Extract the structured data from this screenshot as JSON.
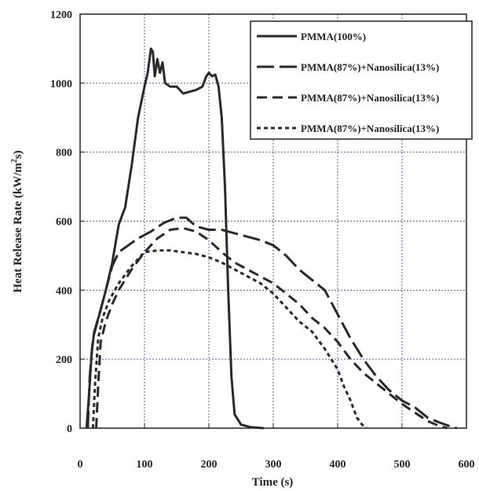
{
  "chart_data": {
    "type": "line",
    "xlabel": "Time (s)",
    "ylabel_main": "Heat Release Rate (kW/m",
    "ylabel_sup": "2",
    "ylabel_end": "s)",
    "xlim": [
      0,
      600
    ],
    "ylim": [
      0,
      1200
    ],
    "xticks": [
      0,
      100,
      200,
      300,
      400,
      500,
      600
    ],
    "yticks": [
      0,
      200,
      400,
      600,
      800,
      1000,
      1200
    ],
    "grid": true,
    "legend_position": "top-right",
    "colors": {
      "line": "#2a2a2a",
      "grid": "#4a5fd0",
      "axis": "#222222"
    },
    "series": [
      {
        "name": "PMMA(100%)",
        "dash": "solid",
        "points": [
          [
            10,
            0
          ],
          [
            14,
            100
          ],
          [
            18,
            220
          ],
          [
            22,
            280
          ],
          [
            30,
            330
          ],
          [
            40,
            400
          ],
          [
            50,
            480
          ],
          [
            60,
            590
          ],
          [
            70,
            640
          ],
          [
            80,
            760
          ],
          [
            90,
            900
          ],
          [
            100,
            990
          ],
          [
            105,
            1030
          ],
          [
            110,
            1100
          ],
          [
            113,
            1090
          ],
          [
            116,
            1020
          ],
          [
            120,
            1070
          ],
          [
            124,
            1030
          ],
          [
            128,
            1060
          ],
          [
            132,
            1000
          ],
          [
            140,
            990
          ],
          [
            150,
            990
          ],
          [
            160,
            970
          ],
          [
            170,
            975
          ],
          [
            180,
            980
          ],
          [
            190,
            990
          ],
          [
            196,
            1020
          ],
          [
            200,
            1030
          ],
          [
            205,
            1020
          ],
          [
            210,
            1025
          ],
          [
            215,
            990
          ],
          [
            220,
            900
          ],
          [
            225,
            700
          ],
          [
            230,
            400
          ],
          [
            235,
            150
          ],
          [
            240,
            40
          ],
          [
            250,
            10
          ],
          [
            265,
            3
          ],
          [
            285,
            0
          ]
        ]
      },
      {
        "name": "PMMA(87%)+Nanosilica(13%)",
        "dash": "long-dash",
        "points": [
          [
            12,
            0
          ],
          [
            15,
            150
          ],
          [
            20,
            260
          ],
          [
            30,
            330
          ],
          [
            40,
            400
          ],
          [
            50,
            470
          ],
          [
            60,
            510
          ],
          [
            75,
            530
          ],
          [
            90,
            550
          ],
          [
            110,
            570
          ],
          [
            130,
            595
          ],
          [
            150,
            610
          ],
          [
            165,
            610
          ],
          [
            180,
            585
          ],
          [
            200,
            575
          ],
          [
            220,
            575
          ],
          [
            240,
            565
          ],
          [
            260,
            555
          ],
          [
            280,
            545
          ],
          [
            300,
            530
          ],
          [
            320,
            500
          ],
          [
            340,
            460
          ],
          [
            360,
            430
          ],
          [
            380,
            400
          ],
          [
            400,
            330
          ],
          [
            420,
            260
          ],
          [
            440,
            200
          ],
          [
            460,
            150
          ],
          [
            480,
            110
          ],
          [
            500,
            80
          ],
          [
            520,
            60
          ],
          [
            540,
            30
          ],
          [
            560,
            15
          ],
          [
            575,
            5
          ],
          [
            585,
            0
          ]
        ]
      },
      {
        "name": "PMMA(87%)+Nanosilica(13%)",
        "dash": "dash",
        "points": [
          [
            25,
            0
          ],
          [
            28,
            120
          ],
          [
            32,
            250
          ],
          [
            40,
            310
          ],
          [
            50,
            360
          ],
          [
            60,
            400
          ],
          [
            80,
            460
          ],
          [
            100,
            510
          ],
          [
            120,
            550
          ],
          [
            140,
            575
          ],
          [
            160,
            580
          ],
          [
            180,
            570
          ],
          [
            200,
            545
          ],
          [
            220,
            510
          ],
          [
            240,
            480
          ],
          [
            260,
            460
          ],
          [
            280,
            440
          ],
          [
            300,
            420
          ],
          [
            320,
            390
          ],
          [
            340,
            360
          ],
          [
            360,
            320
          ],
          [
            380,
            290
          ],
          [
            400,
            250
          ],
          [
            420,
            200
          ],
          [
            440,
            160
          ],
          [
            460,
            130
          ],
          [
            480,
            100
          ],
          [
            500,
            70
          ],
          [
            520,
            45
          ],
          [
            540,
            20
          ],
          [
            560,
            5
          ],
          [
            570,
            0
          ]
        ]
      },
      {
        "name": "PMMA(87%)+Nanosilica(13%)",
        "dash": "short-dash",
        "points": [
          [
            20,
            0
          ],
          [
            23,
            120
          ],
          [
            28,
            260
          ],
          [
            35,
            320
          ],
          [
            45,
            370
          ],
          [
            60,
            420
          ],
          [
            80,
            470
          ],
          [
            100,
            510
          ],
          [
            120,
            515
          ],
          [
            140,
            515
          ],
          [
            160,
            510
          ],
          [
            180,
            505
          ],
          [
            200,
            495
          ],
          [
            220,
            480
          ],
          [
            240,
            460
          ],
          [
            260,
            440
          ],
          [
            280,
            420
          ],
          [
            300,
            390
          ],
          [
            320,
            350
          ],
          [
            340,
            310
          ],
          [
            360,
            280
          ],
          [
            380,
            230
          ],
          [
            400,
            170
          ],
          [
            410,
            120
          ],
          [
            420,
            80
          ],
          [
            430,
            30
          ],
          [
            438,
            10
          ],
          [
            445,
            0
          ]
        ]
      }
    ]
  }
}
